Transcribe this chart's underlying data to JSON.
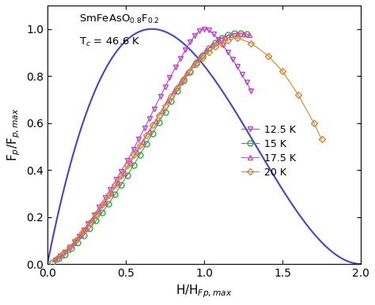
{
  "title_formula": "SmFeAsO$_{0.8}$F$_{0.2}$",
  "title_tc": "T$_c$ = 46.6 K",
  "xlabel": "H/H$_{Fp,max}$",
  "ylabel": "F$_p$/F$_{p,max}$",
  "xlim": [
    0.0,
    2.0
  ],
  "ylim": [
    0.0,
    1.1
  ],
  "yticks": [
    0.0,
    0.2,
    0.4,
    0.6,
    0.8,
    1.0
  ],
  "xticks": [
    0.0,
    0.5,
    1.0,
    1.5,
    2.0
  ],
  "curve_color": "#4444cc",
  "curve_p": 1.0,
  "curve_q": 2.0,
  "series": [
    {
      "label": "12.5 K",
      "color": "#bb44cc",
      "marker": "v",
      "x": [
        0.05,
        0.08,
        0.11,
        0.14,
        0.17,
        0.2,
        0.23,
        0.26,
        0.3,
        0.33,
        0.37,
        0.4,
        0.44,
        0.47,
        0.51,
        0.55,
        0.58,
        0.62,
        0.65,
        0.68,
        0.72,
        0.75,
        0.78,
        0.82,
        0.85,
        0.88,
        0.91,
        0.94,
        0.97,
        1.0,
        1.03,
        1.06,
        1.09,
        1.12,
        1.15,
        1.18,
        1.21,
        1.24,
        1.27,
        1.3
      ],
      "y": [
        0.018,
        0.033,
        0.052,
        0.072,
        0.095,
        0.118,
        0.145,
        0.172,
        0.21,
        0.242,
        0.283,
        0.316,
        0.36,
        0.395,
        0.44,
        0.488,
        0.53,
        0.578,
        0.618,
        0.66,
        0.712,
        0.752,
        0.793,
        0.838,
        0.875,
        0.911,
        0.944,
        0.972,
        0.992,
        1.0,
        0.995,
        0.978,
        0.956,
        0.93,
        0.902,
        0.872,
        0.84,
        0.807,
        0.773,
        0.738
      ]
    },
    {
      "label": "15 K",
      "color": "#33aa33",
      "marker": "o",
      "x": [
        0.03,
        0.07,
        0.11,
        0.15,
        0.19,
        0.23,
        0.27,
        0.31,
        0.35,
        0.39,
        0.43,
        0.47,
        0.51,
        0.55,
        0.59,
        0.63,
        0.67,
        0.71,
        0.75,
        0.79,
        0.83,
        0.87,
        0.91,
        0.95,
        0.99,
        1.03,
        1.07,
        1.11,
        1.15,
        1.19,
        1.23,
        1.27
      ],
      "y": [
        0.008,
        0.022,
        0.042,
        0.066,
        0.092,
        0.12,
        0.151,
        0.184,
        0.219,
        0.256,
        0.295,
        0.336,
        0.378,
        0.421,
        0.465,
        0.51,
        0.555,
        0.601,
        0.647,
        0.692,
        0.736,
        0.779,
        0.819,
        0.856,
        0.889,
        0.918,
        0.942,
        0.961,
        0.974,
        0.981,
        0.983,
        0.979
      ]
    },
    {
      "label": "17.5 K",
      "color": "#dd44bb",
      "marker": "^",
      "x": [
        0.05,
        0.09,
        0.13,
        0.17,
        0.21,
        0.25,
        0.29,
        0.33,
        0.37,
        0.41,
        0.45,
        0.49,
        0.53,
        0.57,
        0.61,
        0.65,
        0.69,
        0.73,
        0.77,
        0.81,
        0.85,
        0.89,
        0.93,
        0.97,
        1.01,
        1.05,
        1.09,
        1.13,
        1.17,
        1.21,
        1.25,
        1.29
      ],
      "y": [
        0.02,
        0.038,
        0.062,
        0.09,
        0.12,
        0.152,
        0.187,
        0.224,
        0.263,
        0.304,
        0.345,
        0.388,
        0.432,
        0.476,
        0.521,
        0.565,
        0.609,
        0.652,
        0.695,
        0.736,
        0.775,
        0.813,
        0.848,
        0.88,
        0.908,
        0.932,
        0.951,
        0.966,
        0.975,
        0.98,
        0.98,
        0.974
      ]
    },
    {
      "label": "20 K",
      "color": "#cc8833",
      "marker": "D",
      "x": [
        0.06,
        0.1,
        0.14,
        0.18,
        0.22,
        0.27,
        0.31,
        0.35,
        0.39,
        0.43,
        0.47,
        0.51,
        0.55,
        0.59,
        0.63,
        0.67,
        0.71,
        0.75,
        0.79,
        0.83,
        0.87,
        0.91,
        0.95,
        0.99,
        1.03,
        1.07,
        1.11,
        1.15,
        1.21,
        1.3,
        1.41,
        1.5,
        1.6,
        1.7,
        1.75
      ],
      "y": [
        0.025,
        0.046,
        0.072,
        0.102,
        0.134,
        0.175,
        0.212,
        0.252,
        0.293,
        0.335,
        0.377,
        0.42,
        0.463,
        0.506,
        0.549,
        0.591,
        0.632,
        0.673,
        0.712,
        0.75,
        0.786,
        0.82,
        0.851,
        0.879,
        0.903,
        0.924,
        0.94,
        0.952,
        0.962,
        0.94,
        0.885,
        0.82,
        0.72,
        0.6,
        0.53
      ]
    }
  ]
}
